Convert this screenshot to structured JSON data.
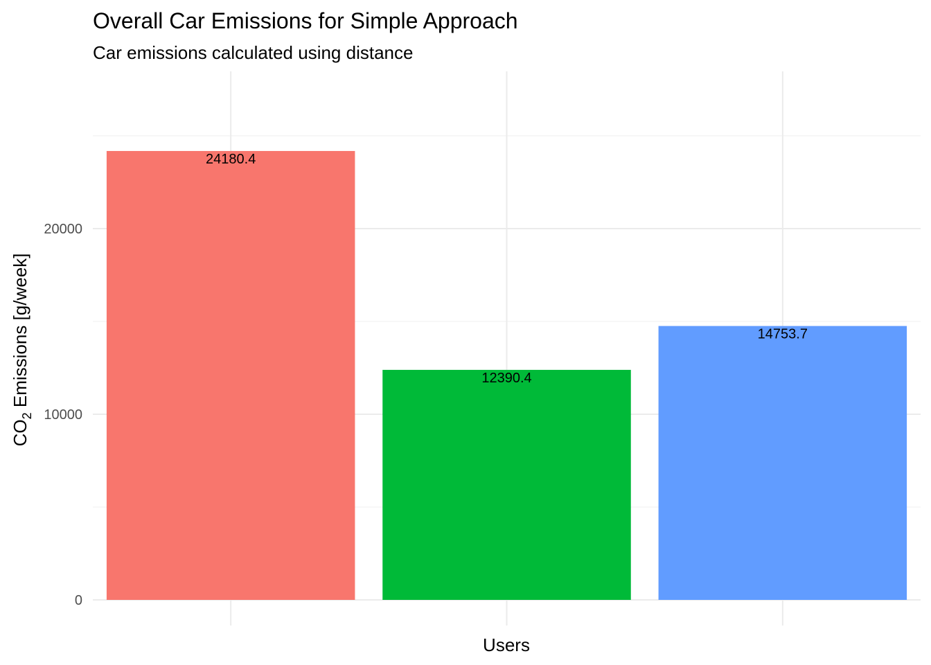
{
  "chart_data": {
    "type": "bar",
    "title": "Overall Car Emissions for Simple Approach",
    "subtitle": "Car emissions calculated using distance",
    "xlabel": "Users",
    "ylabel": {
      "prefix": "CO",
      "subscript": "2",
      "suffix": " Emissions [g/week]"
    },
    "categories": [
      "",
      "",
      ""
    ],
    "values": [
      24180.4,
      12390.4,
      14753.7
    ],
    "value_labels": [
      "24180.4",
      "12390.4",
      "14753.7"
    ],
    "colors": [
      "#f8766d",
      "#00ba38",
      "#619cff"
    ],
    "ylim": [
      0,
      27600
    ],
    "yticks": [
      0,
      10000,
      20000
    ],
    "ytick_labels": [
      "0",
      "10000",
      "20000"
    ],
    "grid": true,
    "legend": "none"
  }
}
